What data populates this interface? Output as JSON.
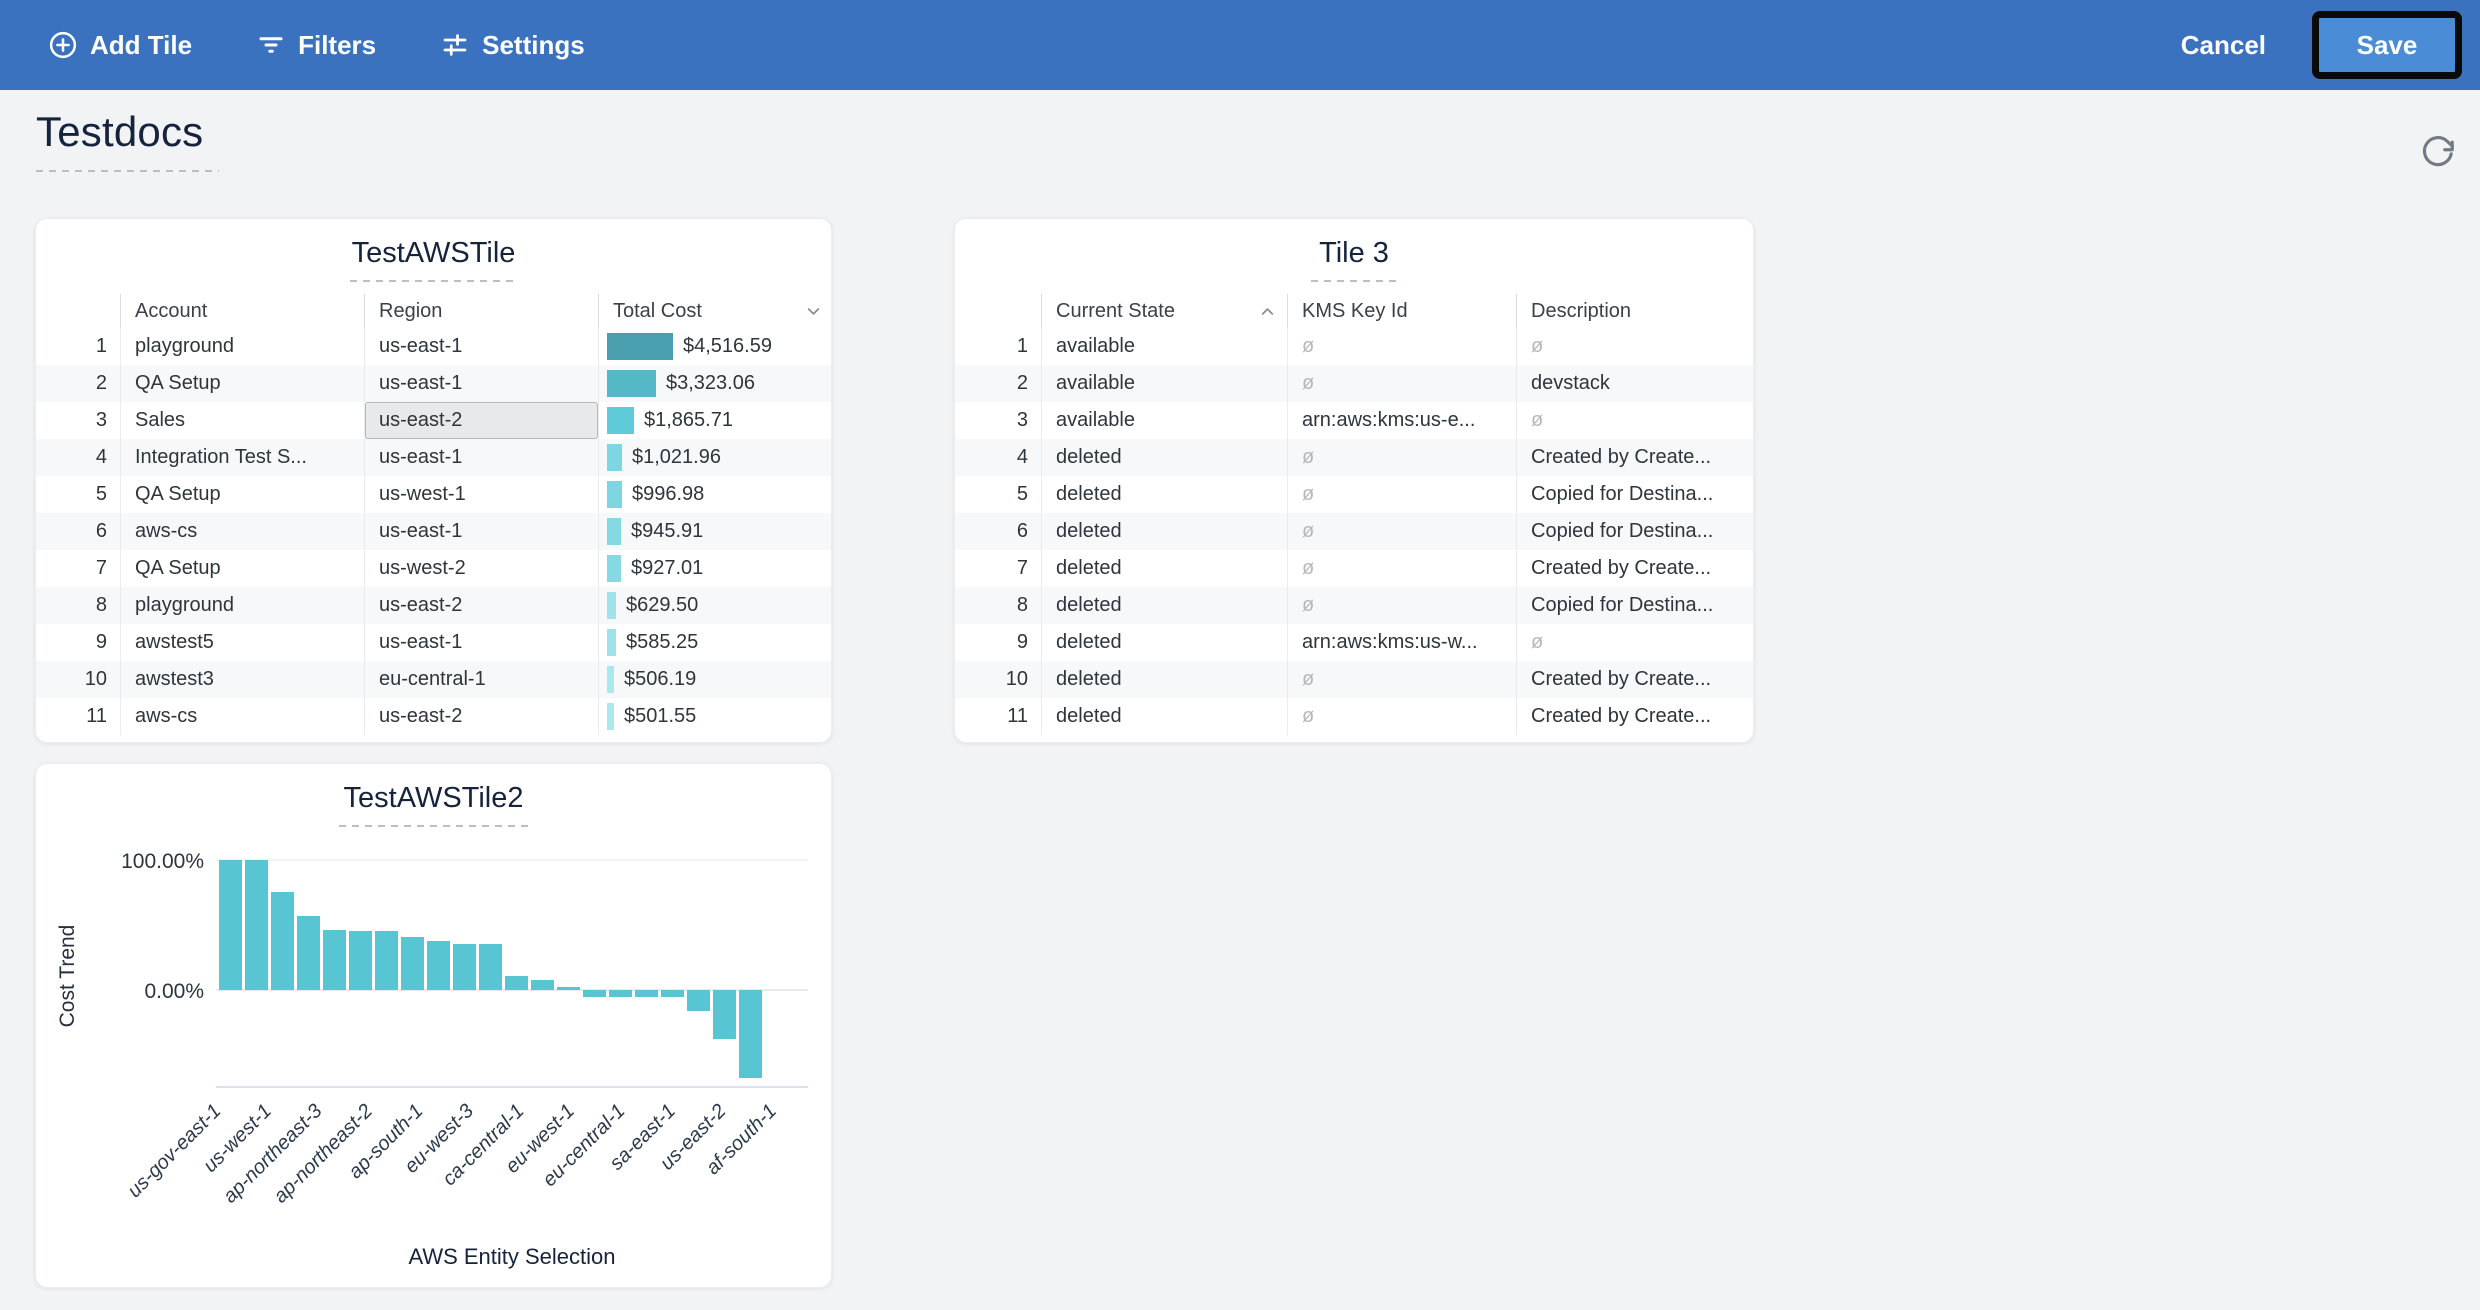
{
  "toolbar": {
    "add_tile": "Add Tile",
    "filters": "Filters",
    "settings": "Settings",
    "cancel": "Cancel",
    "save": "Save",
    "bg_color": "#3a72c0",
    "save_bg_color": "#4a8cd6"
  },
  "icons": {
    "add_tile": "plus-circle",
    "filters": "filter-lines",
    "settings": "sliders",
    "refresh": "rotate-cw",
    "sort_desc": "chevron-down",
    "sort_asc": "chevron-up"
  },
  "page": {
    "title": "Testdocs",
    "bg_color": "#f2f3f5"
  },
  "tiles": {
    "tile1": {
      "title": "TestAWSTile",
      "columns": [
        {
          "key": "account",
          "label": "Account"
        },
        {
          "key": "region",
          "label": "Region"
        },
        {
          "key": "total_cost",
          "label": "Total Cost",
          "sort": "desc"
        }
      ],
      "selected_cell": {
        "row": 3,
        "column": "region"
      },
      "rows": [
        {
          "n": 1,
          "account": "playground",
          "region": "us-east-1",
          "total_cost": "$4,516.59",
          "value": 4516.59,
          "bar_color": "#4a9fae"
        },
        {
          "n": 2,
          "account": "QA Setup",
          "region": "us-east-1",
          "total_cost": "$3,323.06",
          "value": 3323.06,
          "bar_color": "#54b8c6"
        },
        {
          "n": 3,
          "account": "Sales",
          "region": "us-east-2",
          "total_cost": "$1,865.71",
          "value": 1865.71,
          "bar_color": "#5fcbd9"
        },
        {
          "n": 4,
          "account": "Integration Test S...",
          "region": "us-east-1",
          "total_cost": "$1,021.96",
          "value": 1021.96,
          "bar_color": "#7ed6e0"
        },
        {
          "n": 5,
          "account": "QA Setup",
          "region": "us-west-1",
          "total_cost": "$996.98",
          "value": 996.98,
          "bar_color": "#7ed6e0"
        },
        {
          "n": 6,
          "account": "aws-cs",
          "region": "us-east-1",
          "total_cost": "$945.91",
          "value": 945.91,
          "bar_color": "#84d9e2"
        },
        {
          "n": 7,
          "account": "QA Setup",
          "region": "us-west-2",
          "total_cost": "$927.01",
          "value": 927.01,
          "bar_color": "#84d9e2"
        },
        {
          "n": 8,
          "account": "playground",
          "region": "us-east-2",
          "total_cost": "$629.50",
          "value": 629.5,
          "bar_color": "#9fe2ea"
        },
        {
          "n": 9,
          "account": "awstest5",
          "region": "us-east-1",
          "total_cost": "$585.25",
          "value": 585.25,
          "bar_color": "#9fe2ea"
        },
        {
          "n": 10,
          "account": "awstest3",
          "region": "eu-central-1",
          "total_cost": "$506.19",
          "value": 506.19,
          "bar_color": "#abe7ee"
        },
        {
          "n": 11,
          "account": "aws-cs",
          "region": "us-east-2",
          "total_cost": "$501.55",
          "value": 501.55,
          "bar_color": "#abe7ee"
        }
      ]
    },
    "tile3": {
      "title": "Tile 3",
      "columns": [
        {
          "key": "current_state",
          "label": "Current State",
          "sort": "asc"
        },
        {
          "key": "kms_key_id",
          "label": "KMS Key Id"
        },
        {
          "key": "description",
          "label": "Description"
        }
      ],
      "rows": [
        {
          "n": 1,
          "current_state": "available",
          "kms_key_id": "ø",
          "description": "ø"
        },
        {
          "n": 2,
          "current_state": "available",
          "kms_key_id": "ø",
          "description": "devstack"
        },
        {
          "n": 3,
          "current_state": "available",
          "kms_key_id": "arn:aws:kms:us-e...",
          "description": "ø"
        },
        {
          "n": 4,
          "current_state": "deleted",
          "kms_key_id": "ø",
          "description": "Created by Create..."
        },
        {
          "n": 5,
          "current_state": "deleted",
          "kms_key_id": "ø",
          "description": "Copied for Destina..."
        },
        {
          "n": 6,
          "current_state": "deleted",
          "kms_key_id": "ø",
          "description": "Copied for Destina..."
        },
        {
          "n": 7,
          "current_state": "deleted",
          "kms_key_id": "ø",
          "description": "Created by Create..."
        },
        {
          "n": 8,
          "current_state": "deleted",
          "kms_key_id": "ø",
          "description": "Copied for Destina..."
        },
        {
          "n": 9,
          "current_state": "deleted",
          "kms_key_id": "arn:aws:kms:us-w...",
          "description": "ø"
        },
        {
          "n": 10,
          "current_state": "deleted",
          "kms_key_id": "ø",
          "description": "Created by Create..."
        },
        {
          "n": 11,
          "current_state": "deleted",
          "kms_key_id": "ø",
          "description": "Created by Create..."
        }
      ]
    },
    "tile2": {
      "title": "TestAWSTile2"
    }
  },
  "chart_data": {
    "type": "bar",
    "title": "TestAWSTile2",
    "xlabel": "AWS Entity Selection",
    "ylabel": "Cost Trend",
    "ytick_labels": [
      "100.00%",
      "0.00%"
    ],
    "ylim": [
      -75,
      110
    ],
    "grid": true,
    "bar_color": "#58c5d3",
    "x_tick_labels": [
      "us-gov-east-1",
      "us-west-1",
      "ap-northeast-3",
      "ap-northeast-2",
      "ap-south-1",
      "eu-west-3",
      "ca-central-1",
      "eu-west-1",
      "eu-central-1",
      "sa-east-1",
      "us-east-2",
      "af-south-1"
    ],
    "values": [
      100,
      100,
      75,
      57,
      46,
      45,
      45,
      41,
      38,
      35,
      35,
      11,
      8,
      2.5,
      -5,
      -5,
      -5,
      -5,
      -16,
      -38,
      -68
    ]
  }
}
